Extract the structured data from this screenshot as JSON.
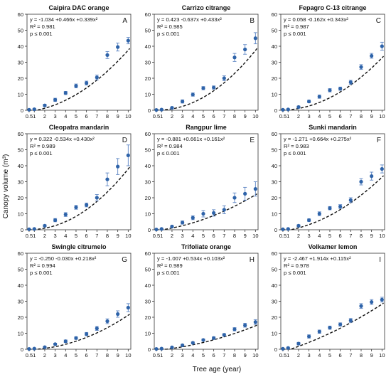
{
  "figure": {
    "ylabel": "Canopy volume (m³)",
    "xlabel": "Tree age (year)",
    "colors": {
      "points": "#2e63a9",
      "errorbars": "#5e86c4",
      "fit": "#111111",
      "axis": "#333333"
    }
  },
  "chart_data": [
    {
      "type": "scatter",
      "title": "Caipira DAC orange",
      "letter": "A",
      "equation": "y = -1.034 +0.466x +0.339x²",
      "r2": "R² = 0.981",
      "p": "p ≤ 0.001",
      "fit": {
        "a": -1.034,
        "b": 0.466,
        "c": 0.339
      },
      "x": [
        0.5,
        1,
        2,
        3,
        4,
        5,
        6,
        7,
        8,
        9,
        10
      ],
      "x_tick_labels": [
        "0.5",
        "1",
        "2",
        "3",
        "4",
        "5",
        "6",
        "7",
        "8",
        "9",
        "10"
      ],
      "y": [
        0.3,
        0.6,
        3.0,
        6.5,
        10.8,
        15.2,
        17.0,
        20.5,
        34.5,
        39.5,
        43.5
      ],
      "err": [
        0.3,
        0.5,
        0.8,
        1.0,
        1.0,
        1.2,
        1.2,
        1.5,
        2.2,
        2.5,
        2.0
      ],
      "ylim": [
        0,
        60
      ],
      "yticks": [
        0,
        10,
        20,
        30,
        40,
        50,
        60
      ]
    },
    {
      "type": "scatter",
      "title": "Carrizo citrange",
      "letter": "B",
      "equation": "y = 0.423 -0.637x +0.433x²",
      "r2": "R² = 0.985",
      "p": "p ≤ 0.001",
      "fit": {
        "a": 0.423,
        "b": -0.637,
        "c": 0.433
      },
      "x": [
        0.5,
        1,
        2,
        3,
        4,
        5,
        6,
        7,
        8,
        9,
        10
      ],
      "x_tick_labels": [
        "0.5",
        "1",
        "2",
        "3",
        "4",
        "5",
        "6",
        "7",
        "8",
        "9",
        "10"
      ],
      "y": [
        0.2,
        0.4,
        1.5,
        5.5,
        9.8,
        13.8,
        14.2,
        20.0,
        33.0,
        38.0,
        45.0
      ],
      "err": [
        0.2,
        0.3,
        0.6,
        1.0,
        1.0,
        1.0,
        1.0,
        1.5,
        2.5,
        3.0,
        3.5
      ],
      "ylim": [
        0,
        60
      ],
      "yticks": [
        0,
        10,
        20,
        30,
        40,
        50,
        60
      ]
    },
    {
      "type": "scatter",
      "title": "Fepagro C-13 citrange",
      "letter": "C",
      "equation": "y = 0.058 -0.162x +0.343x²",
      "r2": "R² = 0.987",
      "p": "p ≤ 0.001",
      "fit": {
        "a": 0.058,
        "b": -0.162,
        "c": 0.343
      },
      "x": [
        0.5,
        1,
        2,
        3,
        4,
        5,
        6,
        7,
        8,
        9,
        10
      ],
      "x_tick_labels": [
        "0.5",
        "1",
        "2",
        "3",
        "4",
        "5",
        "6",
        "7",
        "8",
        "9",
        "10"
      ],
      "y": [
        0.3,
        0.5,
        2.0,
        5.5,
        8.5,
        12.5,
        13.5,
        17.5,
        27.0,
        34.0,
        40.0
      ],
      "err": [
        0.2,
        0.4,
        0.6,
        0.8,
        1.0,
        1.0,
        1.0,
        1.2,
        1.5,
        1.5,
        2.5
      ],
      "ylim": [
        0,
        60
      ],
      "yticks": [
        0,
        10,
        20,
        30,
        40,
        50,
        60
      ]
    },
    {
      "type": "scatter",
      "title": "Cleopatra mandarin",
      "letter": "D",
      "equation": "y = 0.322 -0.534x +0.430x²",
      "r2": "R² = 0.989",
      "p": "p ≤ 0.001",
      "fit": {
        "a": 0.322,
        "b": -0.534,
        "c": 0.43
      },
      "x": [
        0.5,
        1,
        2,
        3,
        4,
        5,
        6,
        7,
        8,
        9,
        10
      ],
      "x_tick_labels": [
        "0.5",
        "1",
        "2",
        "3",
        "4",
        "5",
        "6",
        "7",
        "8",
        "9",
        "10"
      ],
      "y": [
        0.3,
        0.5,
        2.5,
        6.0,
        9.5,
        14.0,
        15.5,
        20.0,
        31.5,
        39.5,
        46.5
      ],
      "err": [
        0.2,
        0.4,
        0.6,
        1.0,
        1.2,
        1.2,
        1.2,
        2.0,
        4.0,
        5.0,
        6.5
      ],
      "ylim": [
        0,
        60
      ],
      "yticks": [
        0,
        10,
        20,
        30,
        40,
        50,
        60
      ]
    },
    {
      "type": "scatter",
      "title": "Rangpur lime",
      "letter": "E",
      "equation": "y = -0.881 +0.661x +0.161x²",
      "r2": "R² = 0.984",
      "p": "p ≤ 0.001",
      "fit": {
        "a": -0.881,
        "b": 0.661,
        "c": 0.161
      },
      "x": [
        0.5,
        1,
        2,
        3,
        4,
        5,
        6,
        7,
        8,
        9,
        10
      ],
      "x_tick_labels": [
        "0.5",
        "1",
        "2",
        "3",
        "4",
        "5",
        "6",
        "7",
        "8",
        "9",
        "10"
      ],
      "y": [
        0.2,
        0.5,
        2.0,
        4.5,
        7.5,
        10.0,
        10.5,
        12.5,
        20.0,
        22.5,
        25.5
      ],
      "err": [
        0.2,
        0.3,
        0.6,
        1.0,
        1.2,
        2.0,
        2.0,
        2.5,
        3.0,
        4.0,
        4.5
      ],
      "ylim": [
        0,
        60
      ],
      "yticks": [
        0,
        10,
        20,
        30,
        40,
        50,
        60
      ]
    },
    {
      "type": "scatter",
      "title": "Sunki mandarin",
      "letter": "F",
      "equation": "y = -1.271 +0.664x +0.275x²",
      "r2": "R² = 0.983",
      "p": "p ≤ 0.001",
      "fit": {
        "a": -1.271,
        "b": 0.664,
        "c": 0.275
      },
      "x": [
        0.5,
        1,
        2,
        3,
        4,
        5,
        6,
        7,
        8,
        9,
        10
      ],
      "x_tick_labels": [
        "0.5",
        "1",
        "2",
        "3",
        "4",
        "5",
        "6",
        "7",
        "8",
        "9",
        "10"
      ],
      "y": [
        0.3,
        0.5,
        2.5,
        6.0,
        10.0,
        13.5,
        14.5,
        18.5,
        30.0,
        33.5,
        38.0
      ],
      "err": [
        0.2,
        0.4,
        0.6,
        0.8,
        1.2,
        1.0,
        1.2,
        1.5,
        2.0,
        2.5,
        2.5
      ],
      "ylim": [
        0,
        60
      ],
      "yticks": [
        0,
        10,
        20,
        30,
        40,
        50,
        60
      ]
    },
    {
      "type": "scatter",
      "title": "Swingle citrumelo",
      "letter": "G",
      "equation": "y = -0.250 -0.030x +0.218x²",
      "r2": "R² = 0.994",
      "p": "p ≤ 0.001",
      "fit": {
        "a": -0.25,
        "b": -0.03,
        "c": 0.218
      },
      "x": [
        0.5,
        1,
        2,
        3,
        4,
        5,
        6,
        7,
        8,
        9,
        10
      ],
      "x_tick_labels": [
        "0.5",
        "1",
        "2",
        "3",
        "4",
        "5",
        "6",
        "7",
        "8",
        "9",
        "10"
      ],
      "y": [
        0.2,
        0.4,
        1.3,
        3.2,
        5.0,
        7.0,
        9.5,
        13.0,
        17.5,
        22.0,
        26.0
      ],
      "err": [
        0.2,
        0.3,
        0.5,
        0.6,
        0.8,
        0.8,
        1.0,
        1.2,
        1.5,
        2.0,
        2.5
      ],
      "ylim": [
        0,
        60
      ],
      "yticks": [
        0,
        10,
        20,
        30,
        40,
        50,
        60
      ]
    },
    {
      "type": "scatter",
      "title": "Trifoliate orange",
      "letter": "H",
      "equation": "y = -1.007 +0.534x +0.103x²",
      "r2": "R² = 0.989",
      "p": "p ≤ 0.001",
      "fit": {
        "a": -1.007,
        "b": 0.534,
        "c": 0.103
      },
      "x": [
        0.5,
        1,
        2,
        3,
        4,
        5,
        6,
        7,
        8,
        9,
        10
      ],
      "x_tick_labels": [
        "0.5",
        "1",
        "2",
        "3",
        "4",
        "5",
        "6",
        "7",
        "8",
        "9",
        "10"
      ],
      "y": [
        0.2,
        0.4,
        1.2,
        2.5,
        4.0,
        5.8,
        7.0,
        9.0,
        12.5,
        15.0,
        17.0
      ],
      "err": [
        0.2,
        0.3,
        0.4,
        0.5,
        0.6,
        0.6,
        0.8,
        0.8,
        1.0,
        1.2,
        1.5
      ],
      "ylim": [
        0,
        60
      ],
      "yticks": [
        0,
        10,
        20,
        30,
        40,
        50,
        60
      ]
    },
    {
      "type": "scatter",
      "title": "Volkamer lemon",
      "letter": "I",
      "equation": "y = -2.467 +1.914x +0.115x²",
      "r2": "R² = 0.978",
      "p": "p ≤ 0.001",
      "fit": {
        "a": -2.467,
        "b": 1.914,
        "c": 0.115
      },
      "x": [
        0.5,
        1,
        2,
        3,
        4,
        5,
        6,
        7,
        8,
        9,
        10
      ],
      "x_tick_labels": [
        "0.5",
        "1",
        "2",
        "3",
        "4",
        "5",
        "6",
        "7",
        "8",
        "9",
        "10"
      ],
      "y": [
        0.3,
        0.8,
        3.5,
        8.0,
        11.0,
        13.5,
        15.5,
        18.0,
        27.0,
        29.5,
        31.0
      ],
      "err": [
        0.3,
        0.5,
        0.8,
        1.0,
        1.0,
        1.0,
        1.0,
        1.2,
        1.5,
        1.5,
        1.5
      ],
      "ylim": [
        0,
        60
      ],
      "yticks": [
        0,
        10,
        20,
        30,
        40,
        50,
        60
      ]
    }
  ]
}
